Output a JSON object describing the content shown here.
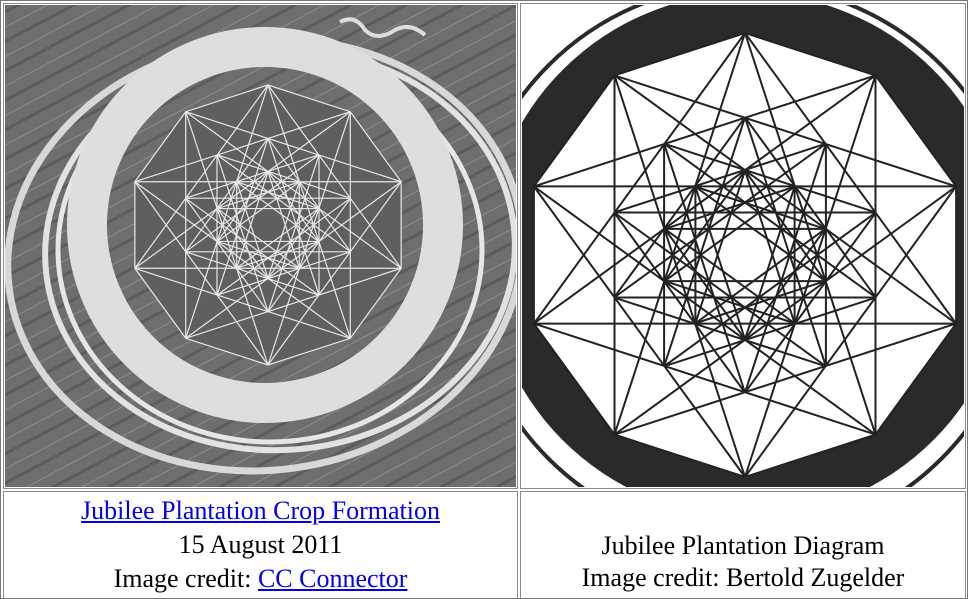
{
  "cells": [
    {
      "link": "Jubilee Plantation Crop Formation",
      "date": "15 August 2011",
      "credit_label": "Image credit:",
      "credit_link": "CC Connector"
    },
    {
      "title": "Jubilee Plantation Diagram",
      "credit": "Image credit: Bertold Zugelder"
    }
  ]
}
